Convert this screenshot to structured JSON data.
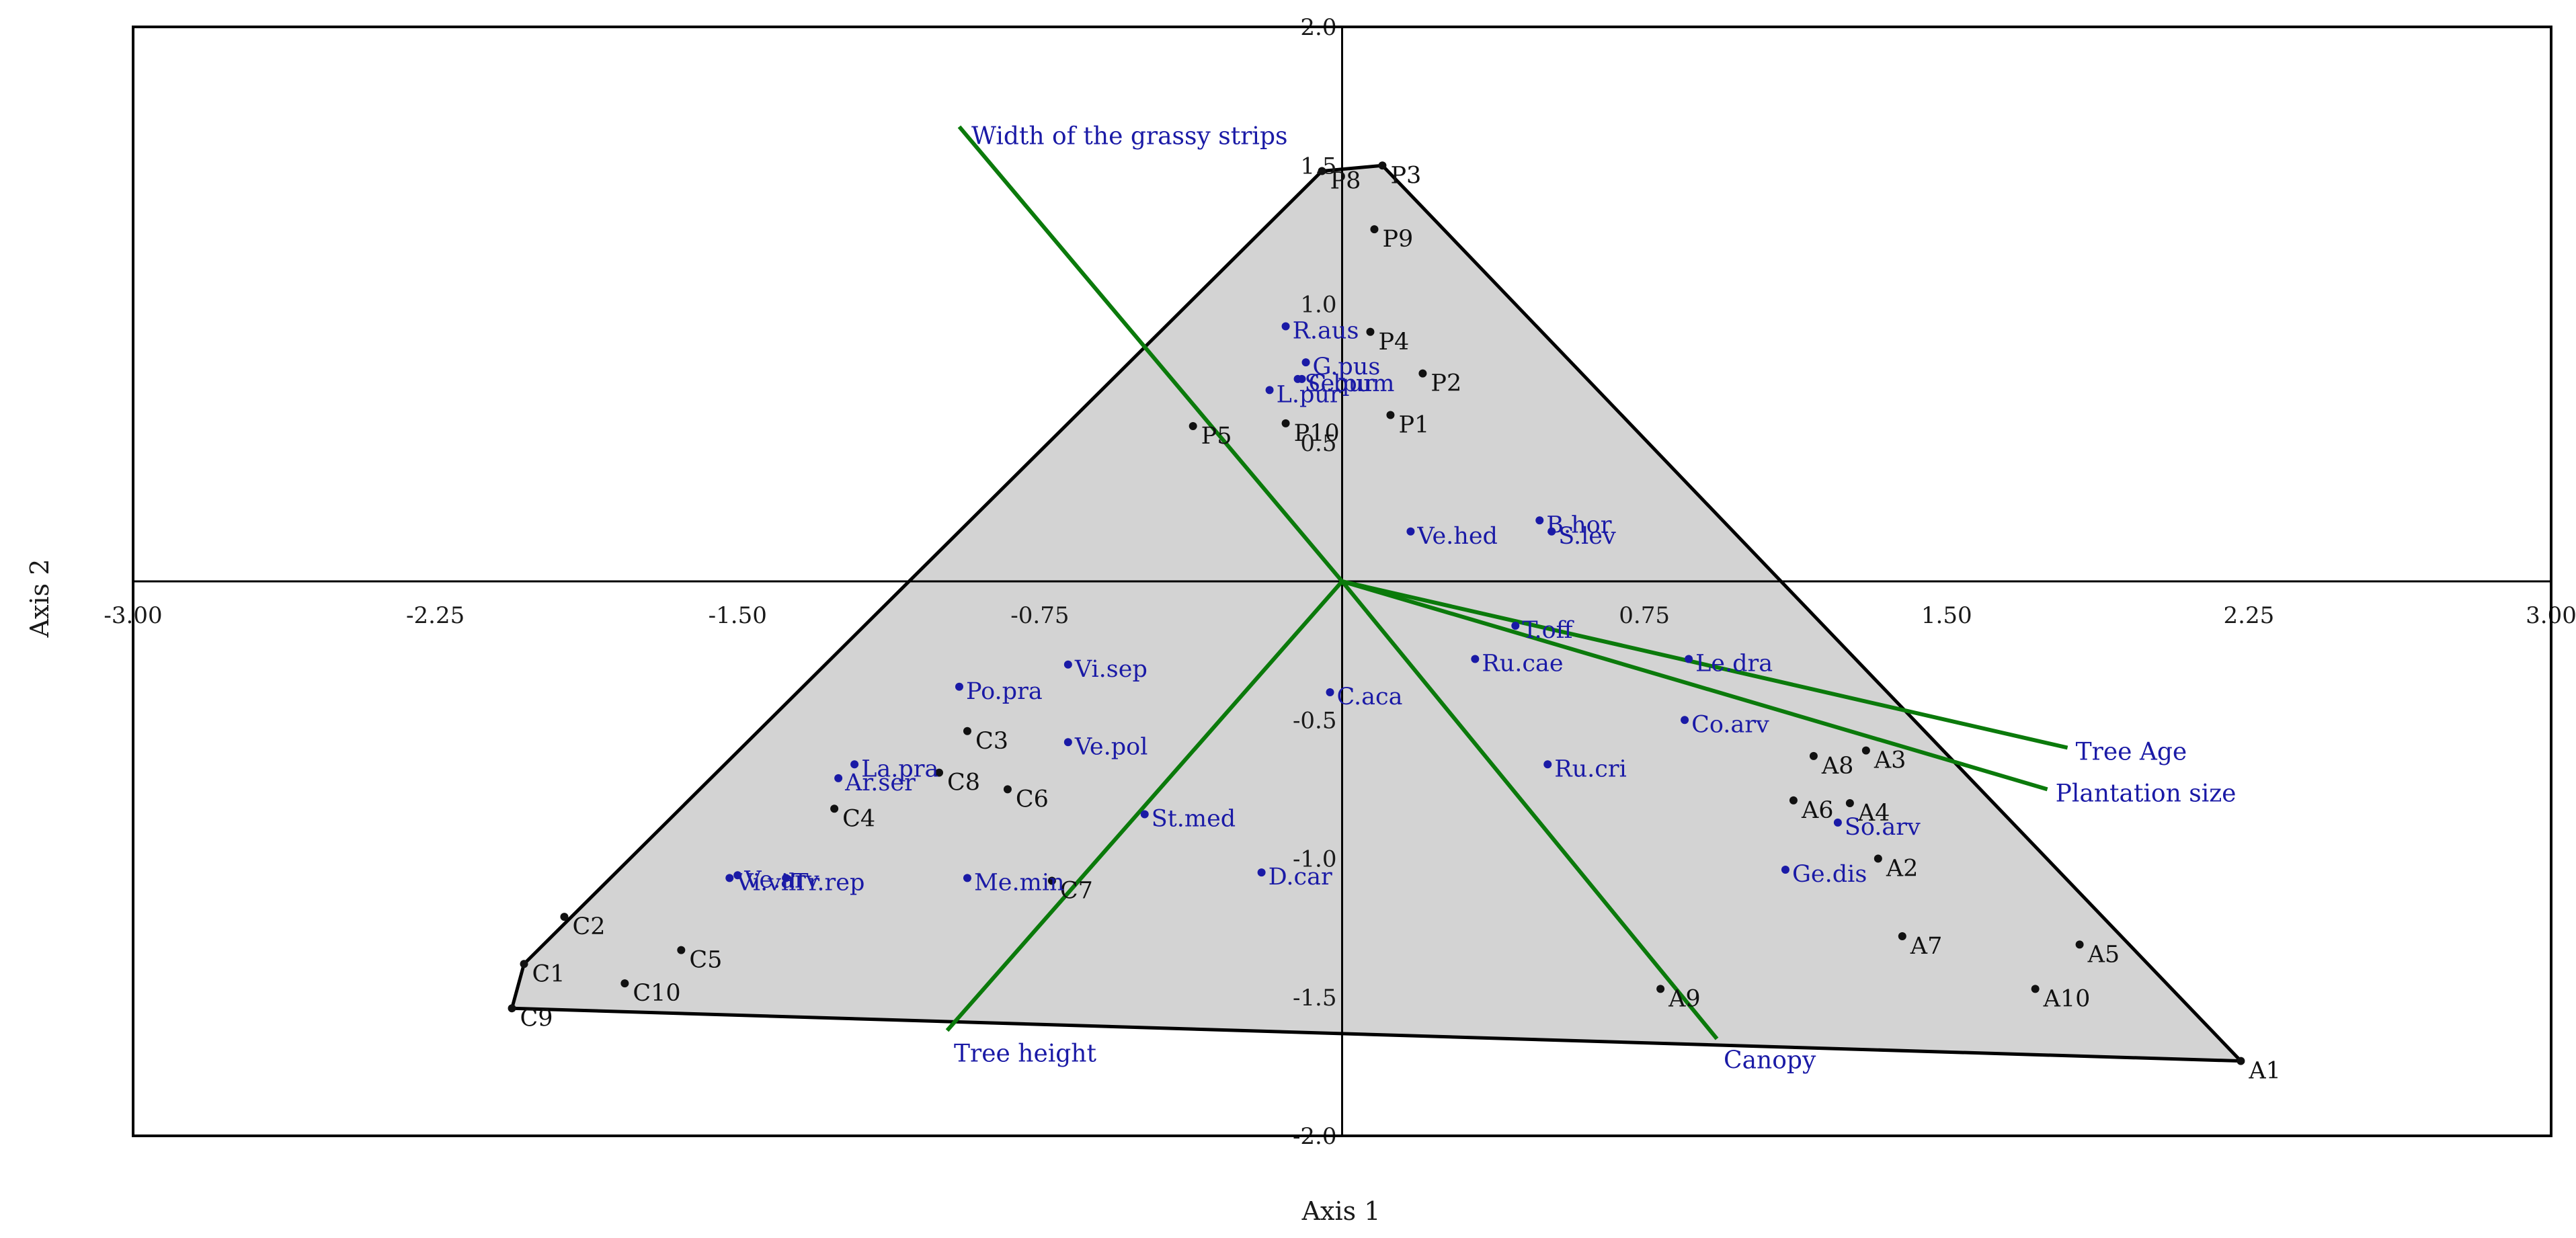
{
  "chart_data": {
    "type": "scatter",
    "xlabel": "Axis 1",
    "ylabel": "Axis 2",
    "xlim": [
      -3.0,
      3.0
    ],
    "ylim": [
      -2.0,
      2.0
    ],
    "x_ticks": [
      "-3.00",
      "-2.25",
      "-1.50",
      "-0.75",
      "0.75",
      "1.50",
      "2.25",
      "3.00"
    ],
    "x_tick_values": [
      -3.0,
      -2.25,
      -1.5,
      -0.75,
      0.75,
      1.5,
      2.25,
      3.0
    ],
    "y_ticks": [
      "2.0",
      "1.5",
      "1.0",
      "0.5",
      "-0.5",
      "-1.0",
      "-1.5",
      "-2.0"
    ],
    "y_tick_values": [
      2.0,
      1.5,
      1.0,
      0.5,
      -0.5,
      -1.0,
      -1.5,
      -2.0
    ],
    "colors": {
      "sites": "#111111",
      "species": "#1a1aa6",
      "vectors": "#0b7a0b",
      "hull_fill": "#d3d3d3",
      "hull_stroke": "#000000",
      "frame": "#000000"
    },
    "hull": [
      {
        "x": 0.1,
        "y": 1.5
      },
      {
        "x": 2.23,
        "y": -1.73
      },
      {
        "x": -2.06,
        "y": -1.54
      },
      {
        "x": -2.03,
        "y": -1.38
      },
      {
        "x": -0.05,
        "y": 1.48
      }
    ],
    "sites": [
      {
        "label": "P3",
        "x": 0.1,
        "y": 1.5
      },
      {
        "label": "P8",
        "x": -0.05,
        "y": 1.48
      },
      {
        "label": "P9",
        "x": 0.08,
        "y": 1.27
      },
      {
        "label": "P4",
        "x": 0.07,
        "y": 0.9
      },
      {
        "label": "P2",
        "x": 0.2,
        "y": 0.75
      },
      {
        "label": "P1",
        "x": 0.12,
        "y": 0.6
      },
      {
        "label": "P10",
        "x": -0.14,
        "y": 0.57
      },
      {
        "label": "P5",
        "x": -0.37,
        "y": 0.56
      },
      {
        "label": "C3",
        "x": -0.93,
        "y": -0.54
      },
      {
        "label": "C8",
        "x": -1.0,
        "y": -0.69
      },
      {
        "label": "C6",
        "x": -0.83,
        "y": -0.75
      },
      {
        "label": "C4",
        "x": -1.26,
        "y": -0.82
      },
      {
        "label": "C7",
        "x": -0.72,
        "y": -1.08
      },
      {
        "label": "C2",
        "x": -1.93,
        "y": -1.21
      },
      {
        "label": "C5",
        "x": -1.64,
        "y": -1.33
      },
      {
        "label": "C1",
        "x": -2.03,
        "y": -1.38
      },
      {
        "label": "C10",
        "x": -1.78,
        "y": -1.45
      },
      {
        "label": "C9",
        "x": -2.06,
        "y": -1.54
      },
      {
        "label": "A8",
        "x": 1.17,
        "y": -0.63
      },
      {
        "label": "A3",
        "x": 1.3,
        "y": -0.61
      },
      {
        "label": "A6",
        "x": 1.12,
        "y": -0.79
      },
      {
        "label": "A4",
        "x": 1.26,
        "y": -0.8
      },
      {
        "label": "A2",
        "x": 1.33,
        "y": -1.0
      },
      {
        "label": "A7",
        "x": 1.39,
        "y": -1.28
      },
      {
        "label": "A5",
        "x": 1.83,
        "y": -1.31
      },
      {
        "label": "A10",
        "x": 1.72,
        "y": -1.47
      },
      {
        "label": "A9",
        "x": 0.79,
        "y": -1.47
      },
      {
        "label": "A1",
        "x": 2.23,
        "y": -1.73
      }
    ],
    "species": [
      {
        "label": "R.aus",
        "x": -0.14,
        "y": 0.92
      },
      {
        "label": "G.pus",
        "x": -0.09,
        "y": 0.79
      },
      {
        "label": "Se.pum",
        "x": -0.11,
        "y": 0.73
      },
      {
        "label": "L.pur",
        "x": -0.18,
        "y": 0.69
      },
      {
        "label": "C.bur",
        "x": -0.1,
        "y": 0.73
      },
      {
        "label": "B.hor",
        "x": 0.49,
        "y": 0.22
      },
      {
        "label": "Ve.hed",
        "x": 0.17,
        "y": 0.18
      },
      {
        "label": "S.lev",
        "x": 0.52,
        "y": 0.18
      },
      {
        "label": "T.off",
        "x": 0.43,
        "y": -0.16
      },
      {
        "label": "Ru.cae",
        "x": 0.33,
        "y": -0.28
      },
      {
        "label": "Le.dra",
        "x": 0.86,
        "y": -0.28
      },
      {
        "label": "C.aca",
        "x": -0.03,
        "y": -0.4
      },
      {
        "label": "Co.arv",
        "x": 0.85,
        "y": -0.5
      },
      {
        "label": "Ru.cri",
        "x": 0.51,
        "y": -0.66
      },
      {
        "label": "So.arv",
        "x": 1.23,
        "y": -0.87
      },
      {
        "label": "Ge.dis",
        "x": 1.1,
        "y": -1.04
      },
      {
        "label": "D.car",
        "x": -0.2,
        "y": -1.05
      },
      {
        "label": "St.med",
        "x": -0.49,
        "y": -0.84
      },
      {
        "label": "Po.pra",
        "x": -0.95,
        "y": -0.38
      },
      {
        "label": "Vi.sep",
        "x": -0.68,
        "y": -0.3
      },
      {
        "label": "Ve.pol",
        "x": -0.68,
        "y": -0.58
      },
      {
        "label": "La.pra",
        "x": -1.21,
        "y": -0.66
      },
      {
        "label": "Ar.ser",
        "x": -1.25,
        "y": -0.71
      },
      {
        "label": "Me.min",
        "x": -0.93,
        "y": -1.07
      },
      {
        "label": "Ve.arv",
        "x": -1.5,
        "y": -1.06
      },
      {
        "label": "Tr.rep",
        "x": -1.38,
        "y": -1.07
      },
      {
        "label": "Vi.vil",
        "x": -1.52,
        "y": -1.07
      }
    ],
    "vectors": [
      {
        "label": "Width of the grassy strips",
        "x": -0.95,
        "y": 1.64
      },
      {
        "label": "Tree Age",
        "x": 1.8,
        "y": -0.6
      },
      {
        "label": "Plantation size",
        "x": 1.75,
        "y": -0.75
      },
      {
        "label": "Canopy",
        "x": 0.93,
        "y": -1.65
      },
      {
        "label": "Tree height",
        "x": -0.98,
        "y": -1.62
      }
    ]
  }
}
